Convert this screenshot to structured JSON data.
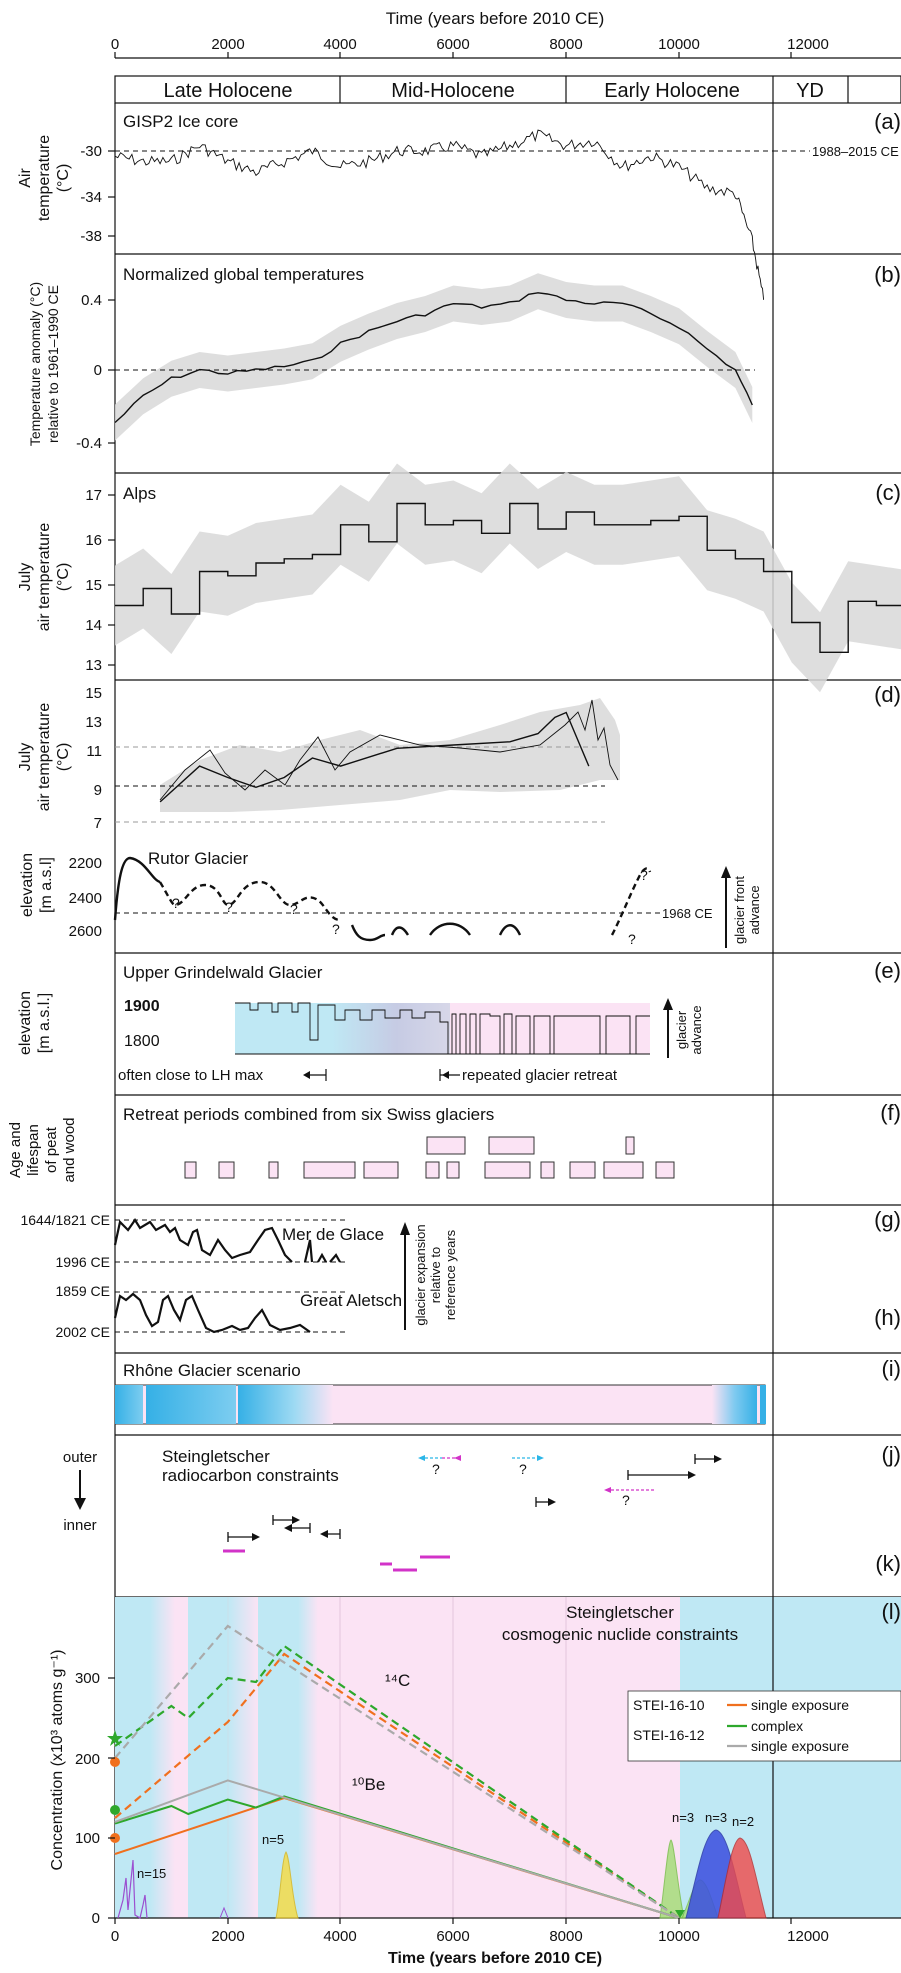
{
  "axis": {
    "label": "Time (years before 2010 CE)",
    "ticks": [
      "0",
      "2000",
      "4000",
      "6000",
      "8000",
      "10000",
      "12000"
    ],
    "tick_values": [
      0,
      2000,
      4000,
      6000,
      8000,
      10000,
      12000
    ]
  },
  "periods": [
    "Late Holocene",
    "Mid-Holocene",
    "Early Holocene",
    "YD"
  ],
  "panels": {
    "a": {
      "letter": "(a)",
      "title": "GISP2 Ice core",
      "ylabel1": "Air",
      "ylabel2": "temperature",
      "ylabel3": "(°C)",
      "ref": "1988–2015 CE",
      "ticks": [
        "-30",
        "-34",
        "-38"
      ]
    },
    "b": {
      "letter": "(b)",
      "title": "Normalized global temperatures",
      "ylabel1": "Temperature anomaly (°C)",
      "ylabel2": "relative  to 1961–1990 CE",
      "ticks": [
        "0.4",
        "0",
        "-0.4"
      ]
    },
    "c": {
      "letter": "(c)",
      "title": "Alps",
      "ylabel1": "July",
      "ylabel2": "air temperature",
      "ylabel3": "(°C)",
      "ticks": [
        "17",
        "16",
        "15",
        "14",
        "13"
      ]
    },
    "d": {
      "letter": "(d)",
      "ylabel1": "July",
      "ylabel2": "air temperature",
      "ylabel3": "(°C)",
      "ticks": [
        "15",
        "13",
        "11",
        "9",
        "7"
      ]
    },
    "rutor": {
      "title": "Rutor Glacier",
      "ylabel1": "elevation",
      "ylabel2": "[m a.s.l]",
      "ticks": [
        "2200",
        "2400",
        "2600"
      ],
      "ref": "1968 CE",
      "arrow1": "glacier front",
      "arrow2": "advance",
      "q": "?"
    },
    "e": {
      "letter": "(e)",
      "title": "Upper Grindelwald Glacier",
      "ylabel1": "elevation",
      "ylabel2": "[m a.s.l.]",
      "ticks": [
        "1900",
        "1800"
      ],
      "left_note": "often close to LH max",
      "right_note": "repeated glacier retreat",
      "arrow1": "glacier",
      "arrow2": "advance"
    },
    "f": {
      "letter": "(f)",
      "title": "Retreat periods combined from six Swiss glaciers",
      "ylabel1": "Age and",
      "ylabel2": "lifespan",
      "ylabel3": "of peat",
      "ylabel4": "and wood"
    },
    "g": {
      "letter": "(g)",
      "name": "Mer de Glace",
      "ref_top": "1644/1821 CE",
      "ref_bottom": "1996 CE",
      "arrow1": "glacier expansion",
      "arrow2": "relative to",
      "arrow3": "reference years"
    },
    "h": {
      "letter": "(h)",
      "name": "Great Aletsch",
      "ref_top": "1859 CE",
      "ref_bottom": "2002 CE"
    },
    "i": {
      "letter": "(i)",
      "title": "Rhône Glacier scenario"
    },
    "j": {
      "letter": "(j)",
      "title1": "Steingletscher",
      "title2": "radiocarbon constraints",
      "outer": "outer",
      "inner": "inner"
    },
    "k": {
      "letter": "(k)"
    },
    "l": {
      "letter": "(l)",
      "title1": "Steingletscher",
      "title2": "cosmogenic nuclide constraints",
      "ylabel": "Concentration (x10³ atoms g⁻¹)",
      "ticks": [
        "300",
        "200",
        "100",
        "0"
      ],
      "c14": "¹⁴C",
      "be10": "¹⁰Be",
      "legend_s10": "STEI-16-10",
      "legend_s12": "STEI-16-12",
      "legend_single": "single exposure",
      "legend_complex": "complex",
      "legend_single2": "single exposure",
      "n15": "n=15",
      "n5": "n=5",
      "n3a": "n=3",
      "n3b": "n=3",
      "n2": "n=2"
    }
  },
  "colors": {
    "ice_blue": "#bfe8f4",
    "pink": "#fbe3f4",
    "lavender": "#c6cbe4",
    "bar_blue": "#35b0e6",
    "orange": "#f0701e",
    "green": "#2ea82c",
    "gray": "#aaaaaa",
    "magenta": "#d233c8",
    "cyan": "#2bb6e8",
    "purple": "#9b4fd0",
    "yellow": "#f5dc4a",
    "lightgreen": "#a6dd7a",
    "blue": "#3b4ee0",
    "red": "#f04a4a"
  },
  "chart_data": [
    {
      "type": "line",
      "panel": "a",
      "title": "GISP2 Ice core",
      "xlabel": "Time (years before 2010 CE)",
      "ylabel": "Air temperature (°C)",
      "ylim": [
        -40,
        -27
      ],
      "x": [
        0,
        500,
        1000,
        1500,
        2000,
        2500,
        3000,
        3500,
        4000,
        4500,
        5000,
        5500,
        6000,
        6500,
        7000,
        7500,
        8000,
        8500,
        9000,
        9500,
        10000,
        10500,
        11000,
        11300,
        11500
      ],
      "y": [
        -30.5,
        -31,
        -31,
        -29.5,
        -31,
        -32,
        -31,
        -30,
        -31.5,
        -31,
        -30,
        -30,
        -29.5,
        -30.5,
        -29.5,
        -28.5,
        -29.5,
        -29,
        -31.5,
        -30.5,
        -31.5,
        -33.5,
        -34,
        -38.5,
        -44
      ]
    },
    {
      "type": "line",
      "panel": "b",
      "title": "Normalized global temperatures",
      "ylabel": "Temperature anomaly (°C) relative to 1961–1990 CE",
      "ylim": [
        -0.5,
        0.55
      ],
      "x": [
        0,
        500,
        1000,
        1500,
        2000,
        2500,
        3000,
        3500,
        4000,
        4500,
        5000,
        5500,
        6000,
        6500,
        7000,
        7500,
        8000,
        8500,
        9000,
        9500,
        10000,
        10500,
        11000,
        11300
      ],
      "y": [
        -0.3,
        -0.15,
        -0.05,
        0,
        -0.02,
        0,
        0.02,
        0.05,
        0.15,
        0.22,
        0.28,
        0.32,
        0.38,
        0.36,
        0.38,
        0.45,
        0.4,
        0.38,
        0.38,
        0.32,
        0.25,
        0.12,
        0,
        -0.2
      ]
    },
    {
      "type": "line",
      "panel": "c",
      "title": "Alps",
      "ylabel": "July air temperature (°C)",
      "ylim": [
        12.7,
        17.4
      ],
      "x": [
        0,
        500,
        1000,
        1500,
        2000,
        2500,
        3000,
        3500,
        4000,
        4500,
        5000,
        5500,
        6000,
        6500,
        7000,
        7500,
        8000,
        8500,
        9000,
        9500,
        10000,
        10500,
        11000,
        11500,
        12000,
        12500,
        13000,
        13500,
        14000
      ],
      "y": [
        14.4,
        14.8,
        14.2,
        15.2,
        15.1,
        15.4,
        15.5,
        15.6,
        16.3,
        15.9,
        16.8,
        16.3,
        16.4,
        16.1,
        16.8,
        16.2,
        16.6,
        16.3,
        16.3,
        16.4,
        16.5,
        15.7,
        15.5,
        15.2,
        14,
        13.3,
        14.5,
        14.4,
        14.3
      ]
    },
    {
      "type": "line",
      "panel": "d",
      "ylabel": "July air temperature (°C)",
      "ylim": [
        6.5,
        15.5
      ],
      "x": [
        800,
        1500,
        2000,
        2500,
        3000,
        3500,
        4000,
        5000,
        6000,
        7000,
        7500,
        7800,
        8000,
        8400
      ],
      "y": [
        8.3,
        10.5,
        9.8,
        9.2,
        9.8,
        11,
        10.5,
        11.6,
        11.8,
        12,
        12.5,
        13.5,
        13.8,
        10.5
      ]
    },
    {
      "type": "line",
      "panel": "l",
      "title": "Steingletscher cosmogenic nuclide constraints",
      "ylabel": "Concentration (x10³ atoms g⁻¹)",
      "ylim": [
        0,
        365
      ],
      "series": [
        {
          "name": "STEI-16-10 single exposure ¹⁴C",
          "x": [
            0,
            2000,
            3000,
            10000
          ],
          "y": [
            125,
            245,
            330,
            0
          ]
        },
        {
          "name": "STEI-16-12 complex ¹⁴C",
          "x": [
            0,
            1000,
            1300,
            2000,
            2500,
            3000,
            10000
          ],
          "y": [
            215,
            265,
            250,
            300,
            295,
            340,
            0
          ]
        },
        {
          "name": "STEI-16-12 single exposure ¹⁴C",
          "x": [
            0,
            2000,
            10000
          ],
          "y": [
            200,
            365,
            0
          ]
        },
        {
          "name": "STEI-16-10 single exposure ¹⁰Be",
          "x": [
            0,
            3000,
            10000
          ],
          "y": [
            80,
            150,
            0
          ]
        },
        {
          "name": "STEI-16-12 complex ¹⁰Be",
          "x": [
            0,
            1000,
            1300,
            2000,
            2500,
            3000,
            10000
          ],
          "y": [
            118,
            140,
            130,
            148,
            138,
            152,
            0
          ]
        },
        {
          "name": "STEI-16-12 single exposure ¹⁰Be",
          "x": [
            0,
            2000,
            10000
          ],
          "y": [
            120,
            172,
            0
          ]
        }
      ]
    }
  ]
}
